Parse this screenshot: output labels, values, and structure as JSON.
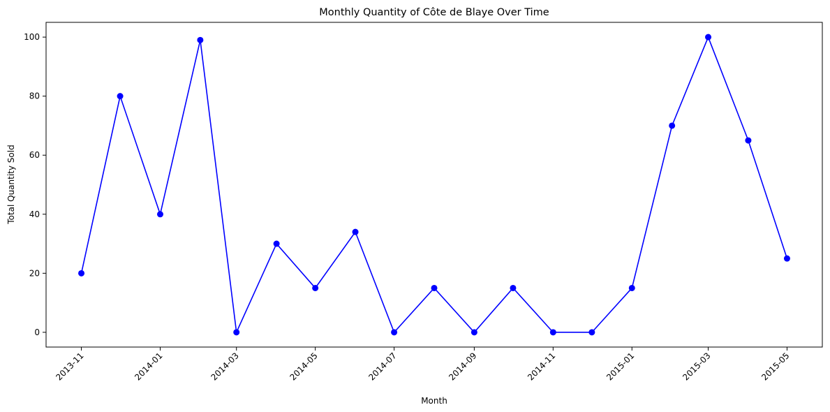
{
  "chart_data": {
    "type": "line",
    "title": "Monthly Quantity of Côte de Blaye Over Time",
    "xlabel": "Month",
    "ylabel": "Total Quantity Sold",
    "x": [
      "2013-11",
      "2013-12",
      "2014-01",
      "2014-02",
      "2014-03",
      "2014-04",
      "2014-05",
      "2014-06",
      "2014-07",
      "2014-08",
      "2014-09",
      "2014-10",
      "2014-11",
      "2014-12",
      "2015-01",
      "2015-02",
      "2015-03",
      "2015-04",
      "2015-05"
    ],
    "series": [
      {
        "values": [
          20,
          80,
          40,
          99,
          0,
          30,
          15,
          34,
          0,
          15,
          0,
          15,
          0,
          0,
          15,
          70,
          100,
          65,
          25
        ],
        "color": "#0000ff",
        "marker": "circle"
      }
    ],
    "xticks": [
      "2013-11",
      "2014-01",
      "2014-03",
      "2014-05",
      "2014-07",
      "2014-09",
      "2014-11",
      "2015-01",
      "2015-03",
      "2015-05"
    ],
    "yticks": [
      0,
      20,
      40,
      60,
      80,
      100
    ],
    "ylim": [
      -5,
      105
    ],
    "grid": false
  }
}
